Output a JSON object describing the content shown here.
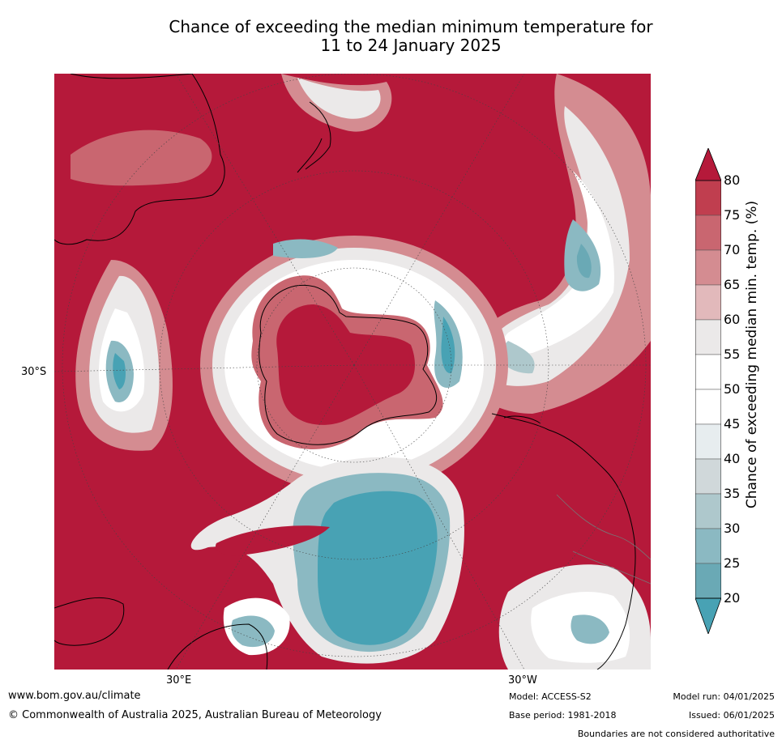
{
  "title_line1": "Chance of exceeding the median minimum temperature for",
  "title_line2": "11 to 24 January 2025",
  "labels": {
    "lat": "30°S",
    "lon_left": "30°E",
    "lon_right": "30°W"
  },
  "colorbar": {
    "title": "Chance of exceeding median min. temp. (%)",
    "ticks": [
      "80",
      "75",
      "70",
      "65",
      "60",
      "55",
      "50",
      "45",
      "40",
      "35",
      "30",
      "25",
      "20"
    ],
    "colors": {
      "gt80": "#b5193a",
      "75_80": "#c03e4f",
      "70_75": "#c96670",
      "65_70": "#d48c91",
      "60_65": "#e2b9bb",
      "55_60": "#ebe9e9",
      "50_55": "#ffffff",
      "45_50": "#ffffff",
      "40_45": "#e7edef",
      "35_40": "#d0d8da",
      "30_35": "#aec8cc",
      "25_30": "#8bb9c2",
      "20_25": "#6aa9b5",
      "lt20": "#48a2b4"
    }
  },
  "footer": {
    "url": "www.bom.gov.au/climate",
    "copyright": "© Commonwealth of Australia 2025, Australian Bureau of Meteorology",
    "model": "Model: ACCESS-S2",
    "base_period": "Base period: 1981-2018",
    "model_run": "Model run: 04/01/2025",
    "issued": "Issued: 06/01/2025",
    "disclaimer": "Boundaries are not considered authoritative"
  }
}
